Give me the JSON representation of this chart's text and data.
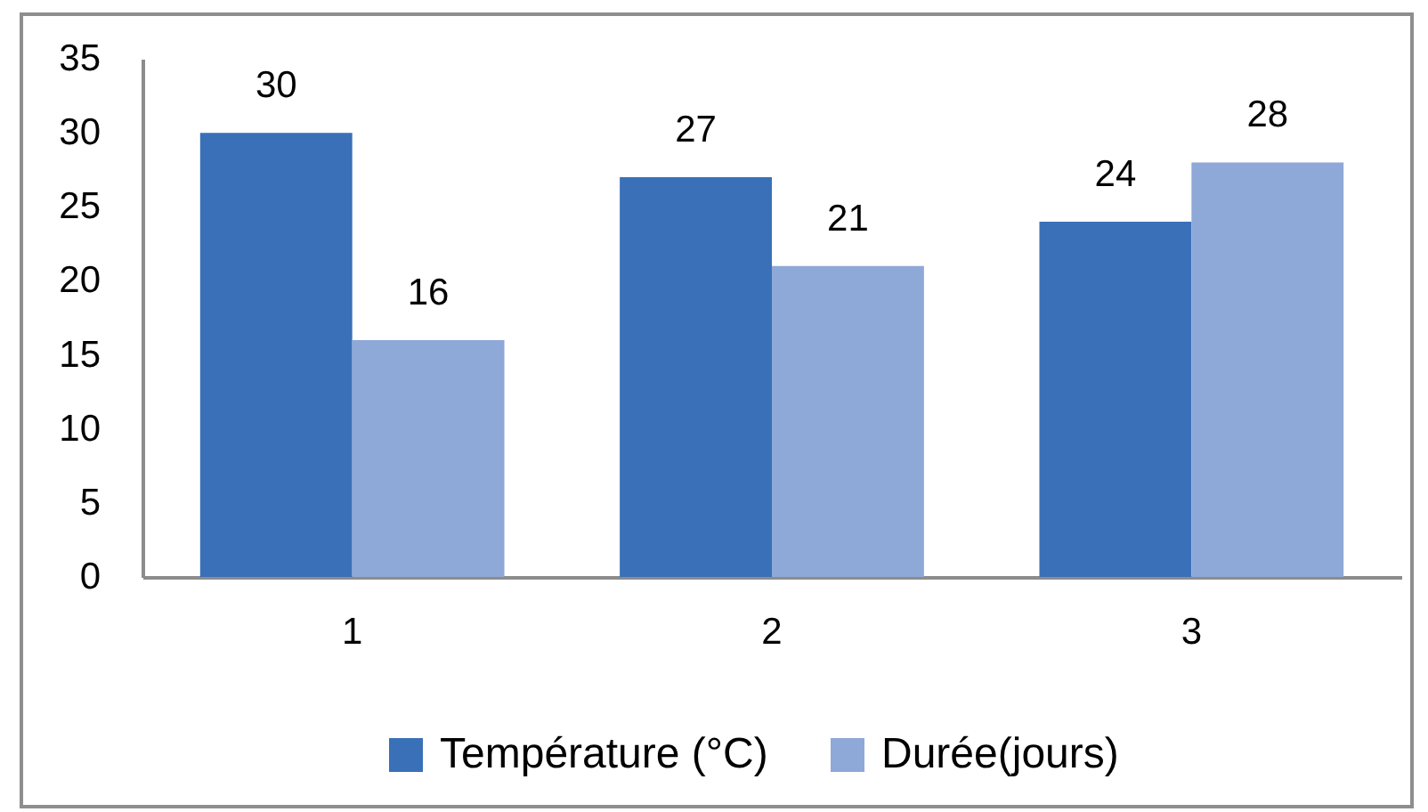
{
  "chart_data": {
    "type": "bar",
    "categories": [
      "1",
      "2",
      "3"
    ],
    "series": [
      {
        "name": "Température (°C)",
        "color": "#3a70b8",
        "values": [
          30,
          27,
          24
        ]
      },
      {
        "name": "Durée(jours)",
        "color": "#8ea8d8",
        "values": [
          16,
          21,
          28
        ]
      }
    ],
    "ylim": [
      0,
      35
    ],
    "yticks": [
      0,
      5,
      10,
      15,
      20,
      25,
      30,
      35
    ],
    "data_labels": true,
    "legend": "bottom",
    "grid": false
  }
}
